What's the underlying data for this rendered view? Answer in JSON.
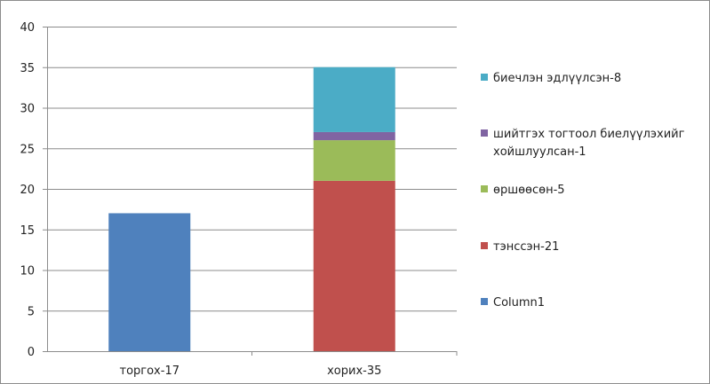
{
  "chart_data": {
    "type": "bar",
    "stacked": true,
    "categories": [
      "торгох-17",
      "хорих-35"
    ],
    "ylim": [
      0,
      40
    ],
    "yticks": [
      0,
      5,
      10,
      15,
      20,
      25,
      30,
      35,
      40
    ],
    "grid": true,
    "legend_position": "right",
    "series": [
      {
        "name": "Column1",
        "values": [
          17,
          0
        ],
        "color": "#4f81bd"
      },
      {
        "name": "тэнссэн-21",
        "values": [
          0,
          21
        ],
        "color": "#c0504d"
      },
      {
        "name": "өршөөсөн-5",
        "values": [
          0,
          5
        ],
        "color": "#9bbb59"
      },
      {
        "name": "шийтгэх тогтоол биелүүлэхийг хойшлуулсан-1",
        "legend_lines": [
          "шийтгэх тогтоол биелүүлэхийг",
          "хойшлуулсан-1"
        ],
        "values": [
          0,
          1
        ],
        "color": "#8064a2"
      },
      {
        "name": "биечлэн эдлүүлсэн-8",
        "values": [
          0,
          8
        ],
        "color": "#4bacc6"
      }
    ],
    "legend_order": [
      4,
      3,
      2,
      1,
      0
    ]
  }
}
